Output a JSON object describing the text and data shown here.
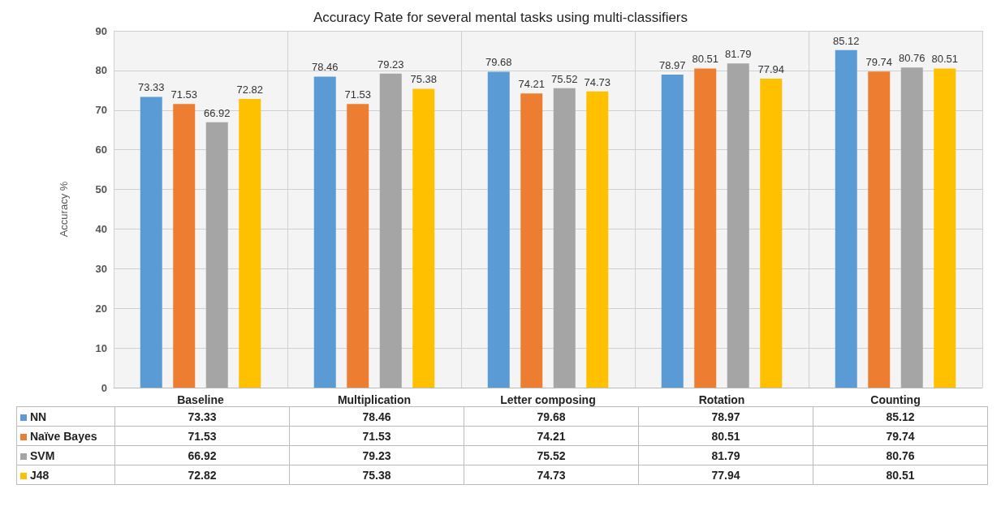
{
  "chart_data": {
    "type": "bar",
    "title": "Accuracy Rate for several mental tasks using multi-classifiers",
    "ylabel": "Accuracy %",
    "categories": [
      "Baseline",
      "Multiplication",
      "Letter composing",
      "Rotation",
      "Counting"
    ],
    "series": [
      {
        "name": "NN",
        "color": "#5b9bd5",
        "values": [
          73.33,
          78.46,
          79.68,
          78.97,
          85.12
        ]
      },
      {
        "name": "Naïve Bayes",
        "color": "#ed7d31",
        "values": [
          71.53,
          71.53,
          74.21,
          80.51,
          79.74
        ]
      },
      {
        "name": "SVM",
        "color": "#a5a5a5",
        "values": [
          66.92,
          79.23,
          75.52,
          81.79,
          80.76
        ]
      },
      {
        "name": "J48",
        "color": "#ffc000",
        "values": [
          72.82,
          75.38,
          74.73,
          77.94,
          80.51
        ]
      }
    ],
    "annotations": [
      "73.33",
      "78.46",
      "79.68",
      "78.97",
      "85.12",
      "71.53",
      "71.53",
      "74.21",
      "80.51",
      "79.74",
      "66.92",
      "79.23",
      "75.52",
      "81.79",
      "80.76",
      "72.82",
      "75.38",
      "74.73",
      "77.94",
      "80.51"
    ],
    "ylim": [
      0,
      90
    ],
    "yticks": [
      0,
      10,
      20,
      30,
      40,
      50,
      60,
      70,
      80,
      90
    ],
    "grid": true,
    "legend": "bottom",
    "data_labels": true
  }
}
